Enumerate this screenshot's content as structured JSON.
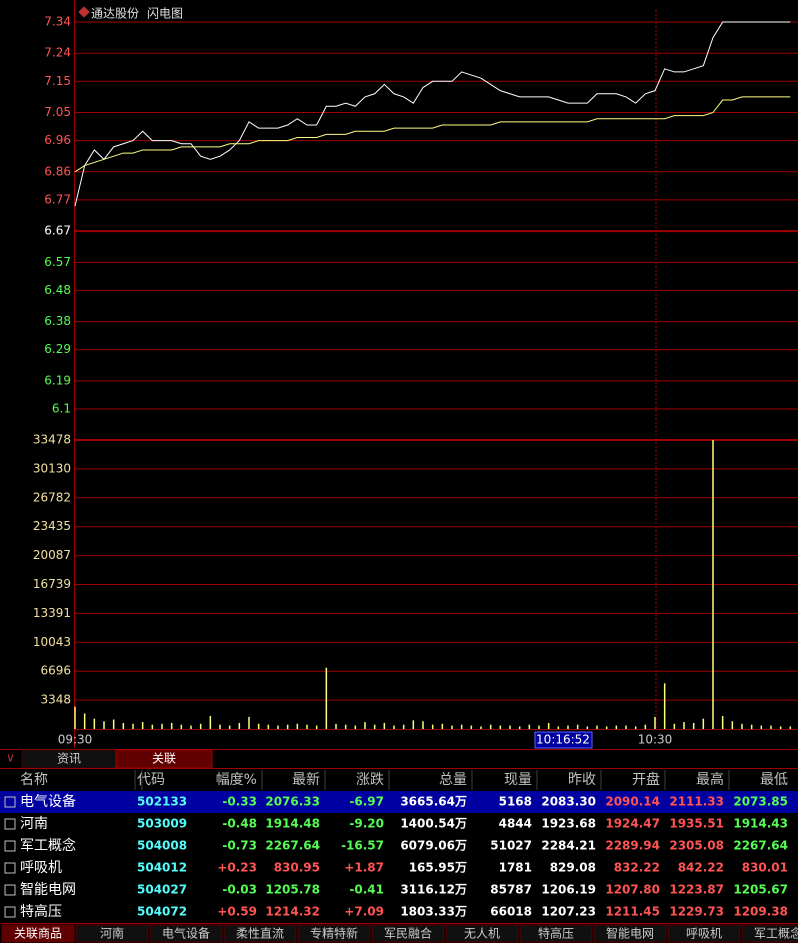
{
  "header": {
    "name": "通达股份",
    "chart_name": "闪电图"
  },
  "chart_data": {
    "type": "line",
    "x": [
      0,
      1,
      2,
      3,
      4,
      5,
      6,
      7,
      8,
      9,
      10,
      11,
      12,
      13,
      14,
      15,
      16,
      17,
      18,
      19,
      20,
      21,
      22,
      23,
      24,
      25,
      26,
      27,
      28,
      29,
      30,
      31,
      32,
      33,
      34,
      35,
      36,
      37,
      38,
      39,
      40,
      41,
      42,
      43,
      44,
      45,
      46,
      47,
      48,
      49,
      50,
      51,
      52,
      53,
      54,
      55,
      56,
      57,
      58,
      59,
      60,
      61,
      62,
      63,
      64,
      65,
      66,
      67,
      68,
      69,
      70,
      71,
      72,
      73,
      74
    ],
    "xlim": [
      0,
      75
    ],
    "xticks": [
      {
        "value": 0,
        "label": "09:30"
      },
      {
        "value": 60,
        "label": "10:30"
      }
    ],
    "cursor_time": "10:16:52",
    "series": [
      {
        "name": "price",
        "color": "#ffffff",
        "values": [
          6.75,
          6.88,
          6.93,
          6.9,
          6.94,
          6.95,
          6.96,
          6.99,
          6.96,
          6.96,
          6.96,
          6.95,
          6.95,
          6.91,
          6.9,
          6.91,
          6.93,
          6.96,
          7.02,
          7.0,
          7.0,
          7.0,
          7.01,
          7.03,
          7.01,
          7.01,
          7.07,
          7.07,
          7.08,
          7.07,
          7.1,
          7.11,
          7.14,
          7.11,
          7.1,
          7.08,
          7.13,
          7.15,
          7.15,
          7.15,
          7.18,
          7.17,
          7.16,
          7.14,
          7.12,
          7.11,
          7.1,
          7.1,
          7.1,
          7.1,
          7.09,
          7.08,
          7.08,
          7.08,
          7.11,
          7.11,
          7.11,
          7.1,
          7.08,
          7.11,
          7.12,
          7.19,
          7.18,
          7.18,
          7.19,
          7.2,
          7.29,
          7.34,
          7.34,
          7.34,
          7.34,
          7.34,
          7.34,
          7.34,
          7.34
        ]
      },
      {
        "name": "average",
        "color": "#ffff80",
        "values": [
          6.86,
          6.88,
          6.89,
          6.9,
          6.91,
          6.92,
          6.92,
          6.93,
          6.93,
          6.93,
          6.93,
          6.94,
          6.94,
          6.94,
          6.94,
          6.94,
          6.95,
          6.95,
          6.95,
          6.96,
          6.96,
          6.96,
          6.96,
          6.97,
          6.97,
          6.97,
          6.98,
          6.98,
          6.98,
          6.99,
          6.99,
          6.99,
          6.99,
          7.0,
          7.0,
          7.0,
          7.0,
          7.0,
          7.01,
          7.01,
          7.01,
          7.01,
          7.01,
          7.01,
          7.02,
          7.02,
          7.02,
          7.02,
          7.02,
          7.02,
          7.02,
          7.02,
          7.02,
          7.02,
          7.03,
          7.03,
          7.03,
          7.03,
          7.03,
          7.03,
          7.03,
          7.03,
          7.04,
          7.04,
          7.04,
          7.04,
          7.05,
          7.09,
          7.09,
          7.1,
          7.1,
          7.1,
          7.1,
          7.1,
          7.1
        ]
      }
    ],
    "ylim": [
      6.1,
      7.34
    ],
    "yticks": [
      7.34,
      7.24,
      7.15,
      7.05,
      6.96,
      6.86,
      6.77,
      6.67,
      6.57,
      6.48,
      6.38,
      6.29,
      6.19,
      6.1
    ],
    "prev_close": 6.67,
    "up_color": "#ff5454",
    "down_color": "#54fc54",
    "grid_color": "#a00000",
    "volume": {
      "type": "bar",
      "color": "#ffff80",
      "values": [
        2600,
        1800,
        1200,
        900,
        1100,
        700,
        600,
        800,
        500,
        600,
        700,
        500,
        400,
        600,
        1500,
        500,
        400,
        700,
        1400,
        600,
        500,
        400,
        500,
        600,
        500,
        400,
        7100,
        600,
        500,
        400,
        800,
        500,
        700,
        400,
        500,
        1000,
        900,
        500,
        600,
        400,
        500,
        400,
        300,
        500,
        400,
        400,
        300,
        500,
        400,
        700,
        300,
        400,
        500,
        300,
        400,
        300,
        400,
        400,
        300,
        500,
        1400,
        5300,
        600,
        800,
        700,
        1200,
        33478,
        1500,
        900,
        600,
        500,
        400,
        400,
        300,
        300
      ],
      "ylim": [
        0,
        33478
      ],
      "yticks": [
        33478,
        30130,
        26782,
        23435,
        20087,
        16739,
        13391,
        10043,
        6696,
        3348
      ]
    }
  },
  "tabs": [
    "资讯",
    "关联"
  ],
  "table": {
    "columns": [
      "名称",
      "代码",
      "幅度%",
      "最新",
      "涨跌",
      "总量",
      "现量",
      "昨收",
      "开盘",
      "最高",
      "最低"
    ],
    "rows": [
      [
        "电气设备",
        "502133",
        "-0.33",
        "2076.33",
        "-6.97",
        "3665.64万",
        "5168",
        "2083.30",
        "2090.14",
        "2111.33",
        "2073.85"
      ],
      [
        "河南",
        "503009",
        "-0.48",
        "1914.48",
        "-9.20",
        "1400.54万",
        "4844",
        "1923.68",
        "1924.47",
        "1935.51",
        "1914.43"
      ],
      [
        "军工概念",
        "504008",
        "-0.73",
        "2267.64",
        "-16.57",
        "6079.06万",
        "51027",
        "2284.21",
        "2289.94",
        "2305.08",
        "2267.64"
      ],
      [
        "呼吸机",
        "504012",
        "+0.23",
        "830.95",
        "+1.87",
        "165.95万",
        "1781",
        "829.08",
        "832.22",
        "842.22",
        "830.01"
      ],
      [
        "智能电网",
        "504027",
        "-0.03",
        "1205.78",
        "-0.41",
        "3116.12万",
        "85787",
        "1206.19",
        "1207.80",
        "1223.87",
        "1205.67"
      ],
      [
        "特高压",
        "504072",
        "+0.59",
        "1214.32",
        "+7.09",
        "1803.33万",
        "66018",
        "1207.23",
        "1211.45",
        "1229.73",
        "1209.38"
      ]
    ]
  },
  "bottom_tabs": [
    "关联商品",
    "河南",
    "电气设备",
    "柔性直流",
    "专精特新",
    "军民融合",
    "无人机",
    "特高压",
    "智能电网",
    "呼吸机",
    "军工概念"
  ]
}
